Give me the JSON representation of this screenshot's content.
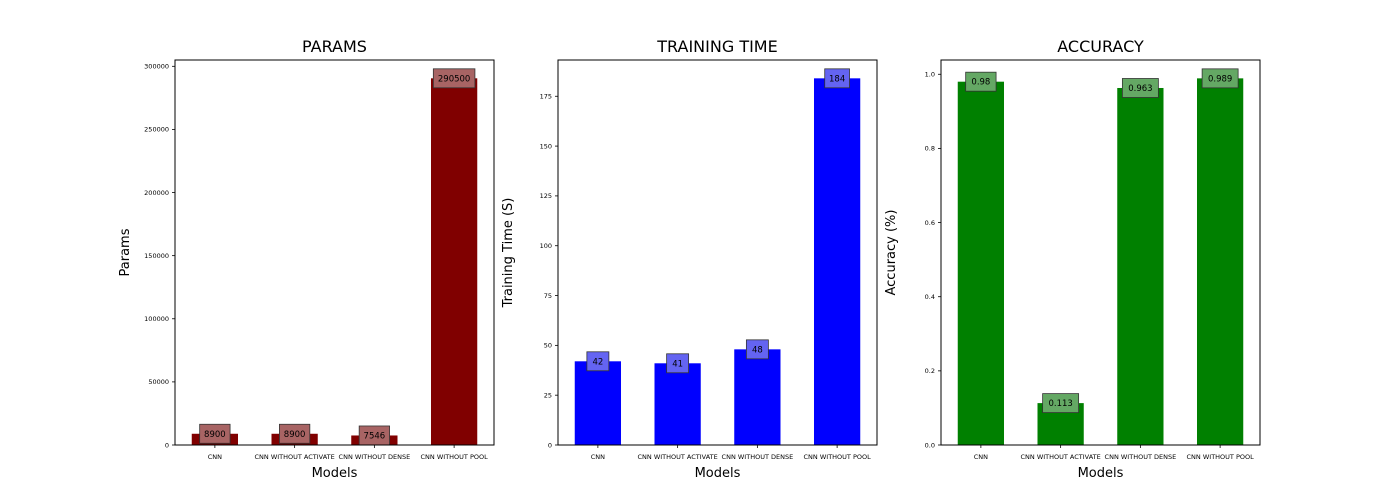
{
  "chart_data": [
    {
      "type": "bar",
      "title": "PARAMS",
      "xlabel": "Models",
      "ylabel": "Params",
      "categories": [
        "CNN",
        "CNN WITHOUT ACTIVATE",
        "CNN WITHOUT DENSE",
        "CNN WITHOUT POOL"
      ],
      "values": [
        8900,
        8900,
        7546,
        290500
      ],
      "value_labels": [
        "8900",
        "8900",
        "7546",
        "290500"
      ],
      "ylim": [
        0,
        305000
      ],
      "yticks": [
        0,
        50000,
        100000,
        150000,
        200000,
        250000,
        300000
      ],
      "ytick_labels": [
        "0",
        "50000",
        "100000",
        "150000",
        "200000",
        "250000",
        "300000"
      ],
      "bar_color": "#800000",
      "label_box_color": "#a86464",
      "grid": false
    },
    {
      "type": "bar",
      "title": "TRAINING TIME",
      "xlabel": "Models",
      "ylabel": "Training Time (S)",
      "categories": [
        "CNN",
        "CNN WITHOUT ACTIVATE",
        "CNN WITHOUT DENSE",
        "CNN WITHOUT POOL"
      ],
      "values": [
        42,
        41,
        48,
        184
      ],
      "value_labels": [
        "42",
        "41",
        "48",
        "184"
      ],
      "ylim": [
        0,
        193.2
      ],
      "yticks": [
        0,
        25,
        50,
        75,
        100,
        125,
        150,
        175
      ],
      "ytick_labels": [
        "0",
        "25",
        "50",
        "75",
        "100",
        "125",
        "150",
        "175"
      ],
      "bar_color": "#0000ff",
      "label_box_color": "#6464f2",
      "grid": false
    },
    {
      "type": "bar",
      "title": "ACCURACY",
      "xlabel": "Models",
      "ylabel": "Accuracy (%)",
      "categories": [
        "CNN",
        "CNN WITHOUT ACTIVATE",
        "CNN WITHOUT DENSE",
        "CNN WITHOUT POOL"
      ],
      "values": [
        0.98,
        0.113,
        0.963,
        0.989
      ],
      "value_labels": [
        "0.98",
        "0.113",
        "0.963",
        "0.989"
      ],
      "ylim": [
        0,
        1.0385
      ],
      "yticks": [
        0.0,
        0.2,
        0.4,
        0.6,
        0.8,
        1.0
      ],
      "ytick_labels": [
        "0.0",
        "0.2",
        "0.4",
        "0.6",
        "0.8",
        "1.0"
      ],
      "bar_color": "#008000",
      "label_box_color": "#64a864",
      "grid": false
    }
  ]
}
